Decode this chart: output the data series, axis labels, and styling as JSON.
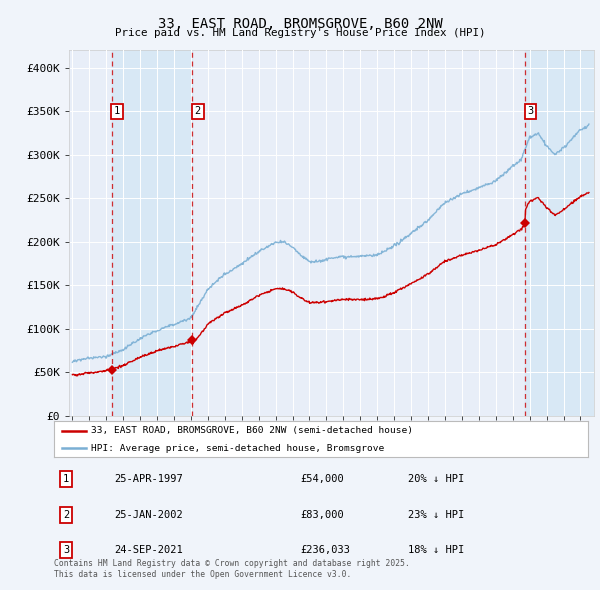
{
  "title": "33, EAST ROAD, BROMSGROVE, B60 2NW",
  "subtitle": "Price paid vs. HM Land Registry's House Price Index (HPI)",
  "legend_line1": "33, EAST ROAD, BROMSGROVE, B60 2NW (semi-detached house)",
  "legend_line2": "HPI: Average price, semi-detached house, Bromsgrove",
  "sale_color": "#cc0000",
  "hpi_color": "#7aafd4",
  "shade_color": "#dde8f5",
  "background_color": "#f0f4fa",
  "plot_bg": "#e8eef8",
  "grid_color": "#ffffff",
  "transactions": [
    {
      "num": 1,
      "date": "25-APR-1997",
      "price": 54000,
      "year": 1997.31,
      "pct": "20% ↓ HPI"
    },
    {
      "num": 2,
      "date": "25-JAN-2002",
      "price": 83000,
      "year": 2002.07,
      "pct": "23% ↓ HPI"
    },
    {
      "num": 3,
      "date": "24-SEP-2021",
      "price": 236033,
      "year": 2021.73,
      "pct": "18% ↓ HPI"
    }
  ],
  "footer": "Contains HM Land Registry data © Crown copyright and database right 2025.\nThis data is licensed under the Open Government Licence v3.0.",
  "ylim": [
    0,
    420000
  ],
  "yticks": [
    0,
    50000,
    100000,
    150000,
    200000,
    250000,
    300000,
    350000,
    400000
  ],
  "ytick_labels": [
    "£0",
    "£50K",
    "£100K",
    "£150K",
    "£200K",
    "£250K",
    "£300K",
    "£350K",
    "£400K"
  ],
  "xlim_start": 1994.8,
  "xlim_end": 2025.8
}
